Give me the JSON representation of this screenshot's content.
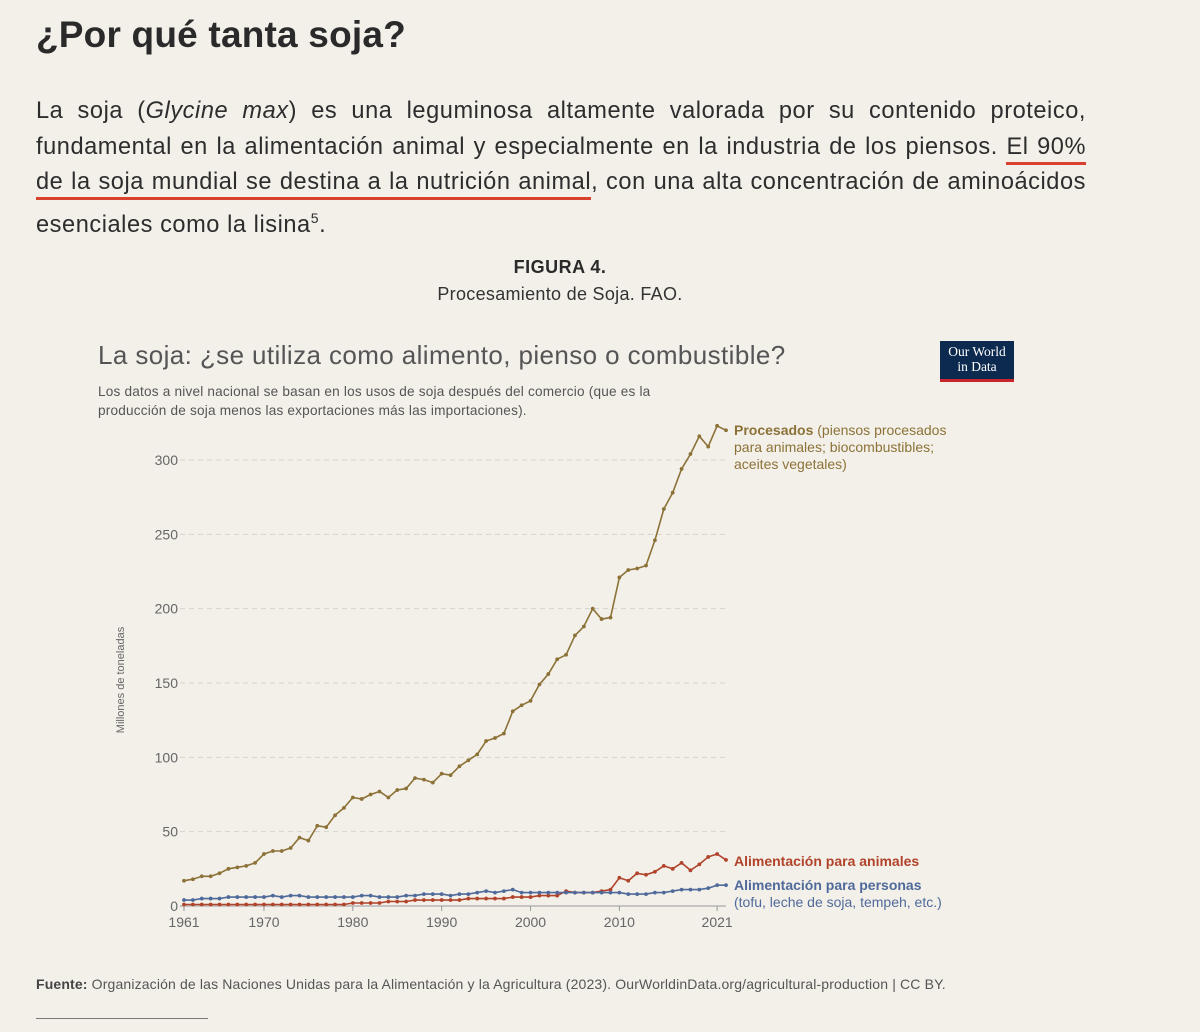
{
  "page": {
    "heading": "¿Por qué tanta soja?",
    "paragraph": {
      "p1": "La soja (",
      "italic": "Glycine max",
      "p2": ") es una leguminosa altamente valorada por su contenido proteico, fundamental en la alimentación animal y especialmente en la industria de los piensos. ",
      "highlight": "El 90% de la soja mundial se destina a la nutrición animal",
      "p3": ", con una alta concentración de aminoácidos esenciales como la lisina",
      "footnote_ref": "5",
      "p4": "."
    },
    "figure_label": "FIGURA 4.",
    "figure_caption": "Procesamiento de Soja. FAO.",
    "source_label": "Fuente:",
    "source_text": "Organización de las Naciones Unidas para la Alimentación y la Agricultura (2023). OurWorldinData.org/agricultural-production | CC BY."
  },
  "logo": {
    "line1": "Our World",
    "line2": "in Data"
  },
  "chart_data": {
    "type": "line",
    "title": "La soja: ¿se utiliza como alimento, pienso o combustible?",
    "subtitle": "Los datos a nivel nacional se basan en los usos de soja después del comercio (que es la producción de soja menos las exportaciones más las importaciones).",
    "ylabel": "Millones de toneladas",
    "xlabel": "",
    "ylim": [
      0,
      300
    ],
    "yticks": [
      0,
      50,
      100,
      150,
      200,
      250,
      300
    ],
    "xlim": [
      1961,
      2022
    ],
    "xticks": [
      1961,
      1970,
      1980,
      1990,
      2000,
      2010,
      2021
    ],
    "grid": "horizontal dashed",
    "x": [
      1961,
      1962,
      1963,
      1964,
      1965,
      1966,
      1967,
      1968,
      1969,
      1970,
      1971,
      1972,
      1973,
      1974,
      1975,
      1976,
      1977,
      1978,
      1979,
      1980,
      1981,
      1982,
      1983,
      1984,
      1985,
      1986,
      1987,
      1988,
      1989,
      1990,
      1991,
      1992,
      1993,
      1994,
      1995,
      1996,
      1997,
      1998,
      1999,
      2000,
      2001,
      2002,
      2003,
      2004,
      2005,
      2006,
      2007,
      2008,
      2009,
      2010,
      2011,
      2012,
      2013,
      2014,
      2015,
      2016,
      2017,
      2018,
      2019,
      2020,
      2021,
      2022
    ],
    "series": [
      {
        "name": "Procesados",
        "label_bold": "Procesados",
        "label_rest": " (piensos procesados",
        "label_line2": "para animales; biocombustibles;",
        "label_line3": "aceites vegetales)",
        "color": "#8c7237",
        "values": [
          17,
          18,
          20,
          20,
          22,
          25,
          26,
          27,
          29,
          35,
          37,
          37,
          39,
          46,
          44,
          54,
          53,
          61,
          66,
          73,
          72,
          75,
          77,
          73,
          78,
          79,
          86,
          85,
          83,
          89,
          88,
          94,
          98,
          102,
          111,
          113,
          116,
          131,
          135,
          138,
          149,
          156,
          166,
          169,
          182,
          188,
          200,
          193,
          194,
          221,
          226,
          227,
          229,
          246,
          267,
          278,
          294,
          304,
          316,
          309,
          323,
          320
        ]
      },
      {
        "name": "Alimentación para animales",
        "label_bold": "Alimentación para animales",
        "color": "#b0432a",
        "values": [
          1,
          1,
          1,
          1,
          1,
          1,
          1,
          1,
          1,
          1,
          1,
          1,
          1,
          1,
          1,
          1,
          1,
          1,
          1,
          2,
          2,
          2,
          2,
          3,
          3,
          3,
          4,
          4,
          4,
          4,
          4,
          4,
          5,
          5,
          5,
          5,
          5,
          6,
          6,
          6,
          7,
          7,
          7,
          10,
          9,
          9,
          9,
          10,
          11,
          19,
          17,
          22,
          21,
          23,
          27,
          25,
          29,
          24,
          28,
          33,
          35,
          31
        ]
      },
      {
        "name": "Alimentación para personas",
        "label_bold": "Alimentación para personas",
        "label_line2": "(tofu, leche de soja, tempeh, etc.)",
        "color": "#4f6a9a",
        "values": [
          4,
          4,
          5,
          5,
          5,
          6,
          6,
          6,
          6,
          6,
          7,
          6,
          7,
          7,
          6,
          6,
          6,
          6,
          6,
          6,
          7,
          7,
          6,
          6,
          6,
          7,
          7,
          8,
          8,
          8,
          7,
          8,
          8,
          9,
          10,
          9,
          10,
          11,
          9,
          9,
          9,
          9,
          9,
          9,
          9,
          9,
          9,
          9,
          9,
          9,
          8,
          8,
          8,
          9,
          9,
          10,
          11,
          11,
          11,
          12,
          14,
          14
        ]
      }
    ]
  }
}
